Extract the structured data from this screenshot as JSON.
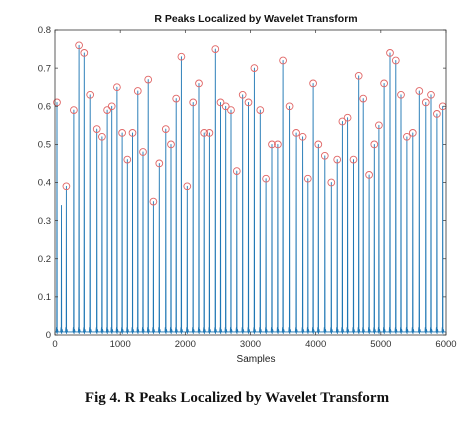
{
  "caption": "Fig 4. R Peaks Localized by Wavelet Transform",
  "chart_data": {
    "type": "line",
    "title": "R Peaks Localized by Wavelet Transform",
    "xlabel": "Samples",
    "ylabel": "",
    "xlim": [
      0,
      6000
    ],
    "ylim": [
      0,
      0.8
    ],
    "xticks": [
      0,
      1000,
      2000,
      3000,
      4000,
      5000,
      6000
    ],
    "yticks": [
      0,
      0.1,
      0.2,
      0.3,
      0.4,
      0.5,
      0.6,
      0.7,
      0.8
    ],
    "ytick_labels": [
      "0",
      "0.1",
      "0.2",
      "0.3",
      "0.4",
      "0.5",
      "0.6",
      "0.7",
      "0.8"
    ],
    "grid": false,
    "series": [
      {
        "role": "signal",
        "color": "#1f77b4",
        "x": [
          30,
          100,
          175,
          290,
          370,
          450,
          540,
          640,
          720,
          800,
          870,
          950,
          1030,
          1110,
          1190,
          1270,
          1350,
          1430,
          1510,
          1600,
          1700,
          1780,
          1860,
          1940,
          2030,
          2120,
          2210,
          2290,
          2370,
          2460,
          2540,
          2620,
          2700,
          2790,
          2880,
          2970,
          3060,
          3150,
          3240,
          3330,
          3420,
          3500,
          3600,
          3700,
          3800,
          3880,
          3960,
          4040,
          4140,
          4240,
          4330,
          4410,
          4490,
          4580,
          4660,
          4730,
          4820,
          4900,
          4970,
          5050,
          5140,
          5230,
          5310,
          5400,
          5490,
          5590,
          5690,
          5770,
          5860,
          5950
        ],
        "values": [
          0.61,
          0.34,
          0.39,
          0.59,
          0.76,
          0.74,
          0.63,
          0.54,
          0.52,
          0.59,
          0.6,
          0.65,
          0.53,
          0.46,
          0.53,
          0.64,
          0.48,
          0.67,
          0.35,
          0.45,
          0.54,
          0.5,
          0.62,
          0.73,
          0.39,
          0.61,
          0.66,
          0.53,
          0.53,
          0.75,
          0.61,
          0.6,
          0.59,
          0.43,
          0.63,
          0.61,
          0.7,
          0.59,
          0.41,
          0.5,
          0.5,
          0.72,
          0.6,
          0.53,
          0.52,
          0.41,
          0.66,
          0.5,
          0.47,
          0.4,
          0.46,
          0.56,
          0.57,
          0.46,
          0.68,
          0.62,
          0.42,
          0.5,
          0.55,
          0.66,
          0.74,
          0.72,
          0.63,
          0.52,
          0.53,
          0.64,
          0.61,
          0.63,
          0.58,
          0.6
        ]
      },
      {
        "role": "detected-peaks",
        "marker": "circle",
        "color": "#e06666",
        "x": [
          30,
          175,
          290,
          370,
          450,
          540,
          640,
          720,
          800,
          870,
          950,
          1030,
          1110,
          1190,
          1270,
          1350,
          1430,
          1510,
          1600,
          1700,
          1780,
          1860,
          1940,
          2030,
          2120,
          2210,
          2290,
          2370,
          2460,
          2540,
          2620,
          2700,
          2790,
          2880,
          2970,
          3060,
          3150,
          3240,
          3330,
          3420,
          3500,
          3600,
          3700,
          3800,
          3880,
          3960,
          4040,
          4140,
          4240,
          4330,
          4410,
          4490,
          4580,
          4660,
          4730,
          4820,
          4900,
          4970,
          5050,
          5140,
          5230,
          5310,
          5400,
          5490,
          5590,
          5690,
          5770,
          5860,
          5950
        ],
        "values": [
          0.61,
          0.39,
          0.59,
          0.76,
          0.74,
          0.63,
          0.54,
          0.52,
          0.59,
          0.6,
          0.65,
          0.53,
          0.46,
          0.53,
          0.64,
          0.48,
          0.67,
          0.35,
          0.45,
          0.54,
          0.5,
          0.62,
          0.73,
          0.39,
          0.61,
          0.66,
          0.53,
          0.53,
          0.75,
          0.61,
          0.6,
          0.59,
          0.43,
          0.63,
          0.61,
          0.7,
          0.59,
          0.41,
          0.5,
          0.5,
          0.72,
          0.6,
          0.53,
          0.52,
          0.41,
          0.66,
          0.5,
          0.47,
          0.4,
          0.46,
          0.56,
          0.57,
          0.46,
          0.68,
          0.62,
          0.42,
          0.5,
          0.55,
          0.66,
          0.74,
          0.72,
          0.63,
          0.52,
          0.53,
          0.64,
          0.61,
          0.63,
          0.58,
          0.6
        ]
      }
    ]
  }
}
